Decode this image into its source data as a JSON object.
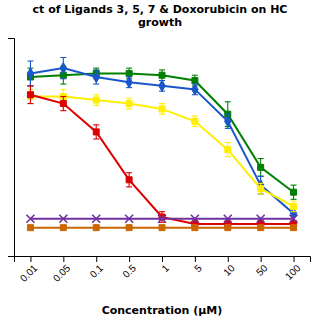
{
  "chart_data": {
    "type": "line",
    "title": "ct of Ligands 3, 5, 7 & Doxorubicin on HC\ngrowth",
    "x_label": "Concentration (μM)",
    "categories": [
      "0.01",
      "0.05",
      "0.1",
      "0.5",
      "1",
      "5",
      "10",
      "50",
      "100"
    ],
    "series": [
      {
        "color": "#008000",
        "marker": "square",
        "values": [
          93,
          94,
          95,
          95,
          94,
          91,
          72,
          42,
          28
        ],
        "errors": [
          5,
          5,
          3,
          3,
          3,
          3,
          7,
          5,
          4
        ]
      },
      {
        "color": "#1A56CC",
        "marker": "diamond",
        "values": [
          95,
          98,
          93,
          90,
          88,
          86,
          68,
          32,
          16
        ],
        "errors": [
          7,
          6,
          4,
          3,
          3,
          3,
          4,
          5,
          4
        ]
      },
      {
        "color": "#FFEE00",
        "marker": "square",
        "values": [
          82,
          82,
          80,
          78,
          75,
          68,
          52,
          30,
          20
        ],
        "errors": [
          4,
          4,
          3,
          3,
          3,
          3,
          4,
          3,
          3
        ]
      },
      {
        "color": "#DD0000",
        "marker": "square",
        "values": [
          83,
          78,
          62,
          35,
          14,
          10,
          10,
          10,
          10
        ],
        "errors": [
          5,
          4,
          4,
          4,
          3,
          2,
          2,
          2,
          2
        ]
      },
      {
        "color": "#7030A0",
        "marker": "x",
        "values": [
          13,
          13,
          13,
          13,
          13,
          13,
          13,
          13,
          13
        ]
      },
      {
        "color": "#CC6600",
        "marker": "square",
        "values": [
          8,
          8,
          8,
          8,
          8,
          8,
          8,
          8,
          8
        ]
      }
    ],
    "ylim": [
      -8,
      115
    ],
    "yticks": [],
    "grid": false,
    "tick_labels": "x"
  }
}
